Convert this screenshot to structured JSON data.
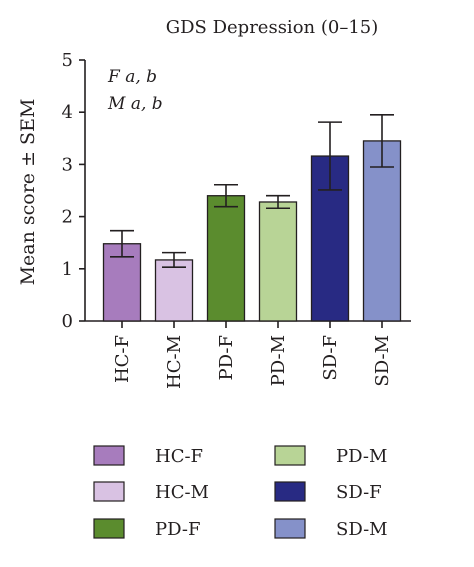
{
  "chart_data": {
    "type": "bar",
    "title": "GDS Depression (0–15)",
    "ylabel": "Mean score ± SEM",
    "xlabel": "",
    "ylim": [
      0,
      5
    ],
    "yticks": [
      "0",
      "1",
      "2",
      "3",
      "4",
      "5"
    ],
    "categories": [
      "HC-F",
      "HC-M",
      "PD-F",
      "PD-M",
      "SD-F",
      "SD-M"
    ],
    "values": [
      1.48,
      1.17,
      2.4,
      2.28,
      3.16,
      3.45
    ],
    "errors": [
      0.25,
      0.14,
      0.21,
      0.12,
      0.65,
      0.5
    ],
    "colors": [
      "#a77cbd",
      "#d9c2e3",
      "#5b8c2e",
      "#b8d496",
      "#282a83",
      "#8591c9"
    ],
    "annotations": [
      {
        "lead": "F",
        "rest": " a, b"
      },
      {
        "lead": "M",
        "rest": " a, b"
      }
    ],
    "legend": {
      "placement": "bottom",
      "entries": [
        "HC-F",
        "HC-M",
        "PD-F",
        "PD-M",
        "SD-F",
        "SD-M"
      ]
    }
  }
}
